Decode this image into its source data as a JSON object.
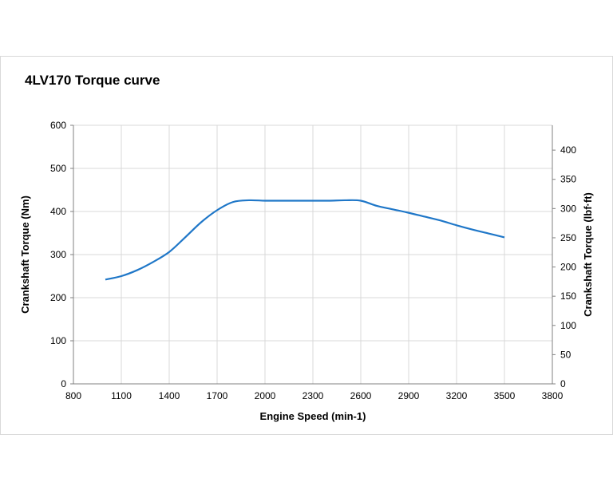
{
  "chart_data": {
    "type": "line",
    "title": "4LV170  Torque curve",
    "xlabel": "Engine Speed (min-1)",
    "ylabel": "Crankshaft Torque (Nm)",
    "y2label": "Crankshaft Torque (lbf·ft)",
    "xlim": [
      800,
      3800
    ],
    "ylim": [
      0,
      600
    ],
    "y2lim": [
      0,
      442.5
    ],
    "xticks": [
      800,
      1100,
      1400,
      1700,
      2000,
      2300,
      2600,
      2900,
      3200,
      3500,
      3800
    ],
    "yticks": [
      0,
      100,
      200,
      300,
      400,
      500,
      600
    ],
    "y2ticks": [
      0,
      50,
      100,
      150,
      200,
      250,
      300,
      350,
      400
    ],
    "grid": true,
    "line_color": "#1f77c8",
    "series": [
      {
        "name": "Torque",
        "x": [
          1000,
          1100,
          1200,
          1300,
          1400,
          1500,
          1600,
          1700,
          1800,
          1900,
          2000,
          2100,
          2200,
          2300,
          2400,
          2500,
          2600,
          2700,
          2800,
          2900,
          3000,
          3100,
          3200,
          3300,
          3400,
          3500
        ],
        "values": [
          242,
          250,
          264,
          283,
          306,
          340,
          375,
          403,
          422,
          426,
          425,
          425,
          425,
          425,
          425,
          426,
          425,
          413,
          405,
          397,
          388,
          379,
          368,
          358,
          349,
          340
        ]
      }
    ]
  }
}
